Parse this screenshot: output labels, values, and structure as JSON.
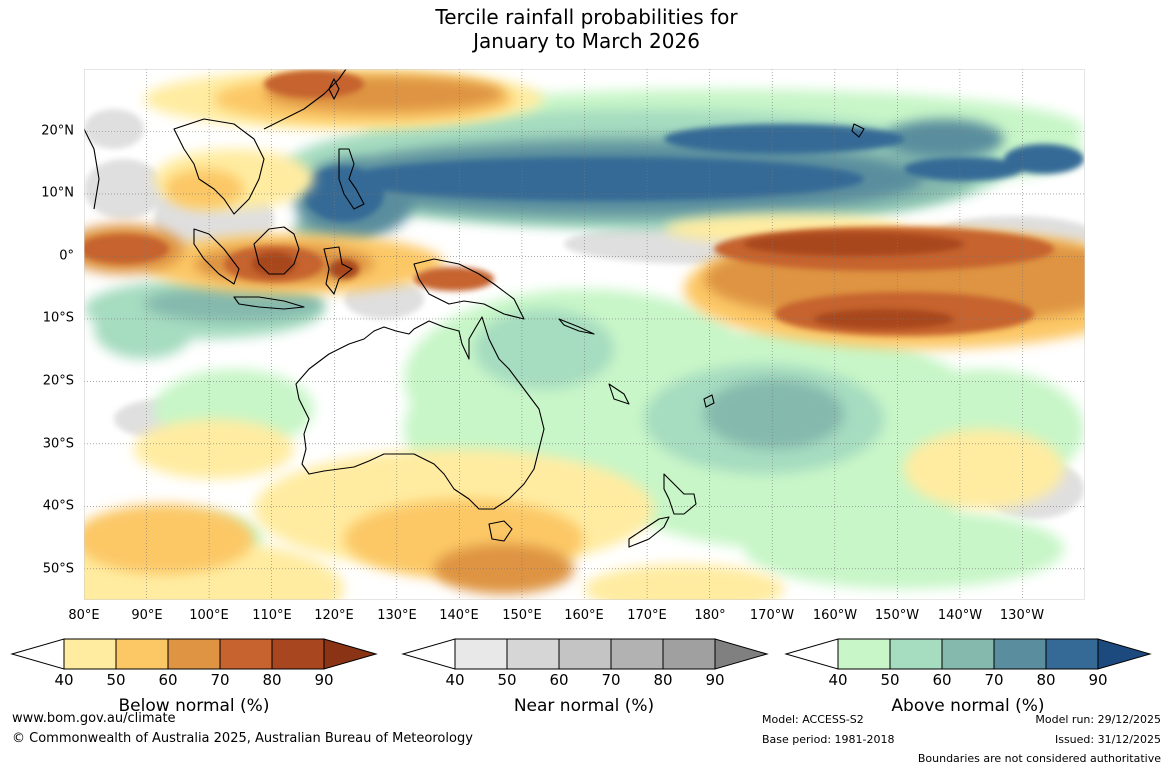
{
  "title": {
    "line1": "Tercile rainfall probabilities for",
    "line2": "January to March 2026"
  },
  "map": {
    "region": "Indo-Pacific",
    "lon_labels": [
      "80°E",
      "90°E",
      "100°E",
      "110°E",
      "120°E",
      "130°E",
      "140°E",
      "150°E",
      "160°E",
      "170°E",
      "180°",
      "170°W",
      "160°W",
      "150°W",
      "140°W",
      "130°W"
    ],
    "lat_labels": [
      "20°N",
      "10°N",
      "0°",
      "10°S",
      "20°S",
      "30°S",
      "40°S",
      "50°S"
    ],
    "lon_range_deg_east": [
      80,
      240
    ],
    "lat_range": [
      -55,
      30
    ],
    "features": [
      {
        "name": "Philippines / Western Pacific",
        "category": "Above normal",
        "max_probability": 80
      },
      {
        "name": "North Pacific band 10-20N",
        "category": "Above normal",
        "max_probability": 80
      },
      {
        "name": "Equatorial central Pacific",
        "category": "Below normal",
        "max_probability": 80
      },
      {
        "name": "Maritime Continent / Borneo",
        "category": "Below normal",
        "max_probability": 80
      },
      {
        "name": "South China Sea / Southern China",
        "category": "Below normal",
        "max_probability": 70
      },
      {
        "name": "Southern Ocean south of Australia",
        "category": "Below normal",
        "max_probability": 60
      },
      {
        "name": "Coral Sea / South Pacific",
        "category": "Above normal",
        "max_probability": 70
      }
    ]
  },
  "colorbars": [
    {
      "title": "Below normal (%)",
      "ticks": [
        "40",
        "50",
        "60",
        "70",
        "80",
        "90"
      ],
      "colors": [
        "#ffeca1",
        "#fcc866",
        "#de9443",
        "#c6632f",
        "#a8461f",
        "#8a3315"
      ]
    },
    {
      "title": "Near normal (%)",
      "ticks": [
        "40",
        "50",
        "60",
        "70",
        "80",
        "90"
      ],
      "colors": [
        "#e8e8e8",
        "#d6d6d6",
        "#c4c4c4",
        "#b2b2b2",
        "#a0a0a0",
        "#808080"
      ]
    },
    {
      "title": "Above normal (%)",
      "ticks": [
        "40",
        "50",
        "60",
        "70",
        "80",
        "90"
      ],
      "colors": [
        "#c8f6c8",
        "#a6dcc0",
        "#85b9ad",
        "#5a8e9e",
        "#356a96",
        "#1c4a7e"
      ]
    }
  ],
  "footer": {
    "website": "www.bom.gov.au/climate",
    "copyright": "© Commonwealth of Australia 2025, Australian Bureau of Meteorology",
    "model": "Model: ACCESS-S2",
    "base_period": "Base period: 1981-2018",
    "model_run": "Model run: 29/12/2025",
    "issued": "Issued: 31/12/2025",
    "disclaimer": "Boundaries are not considered authoritative"
  }
}
